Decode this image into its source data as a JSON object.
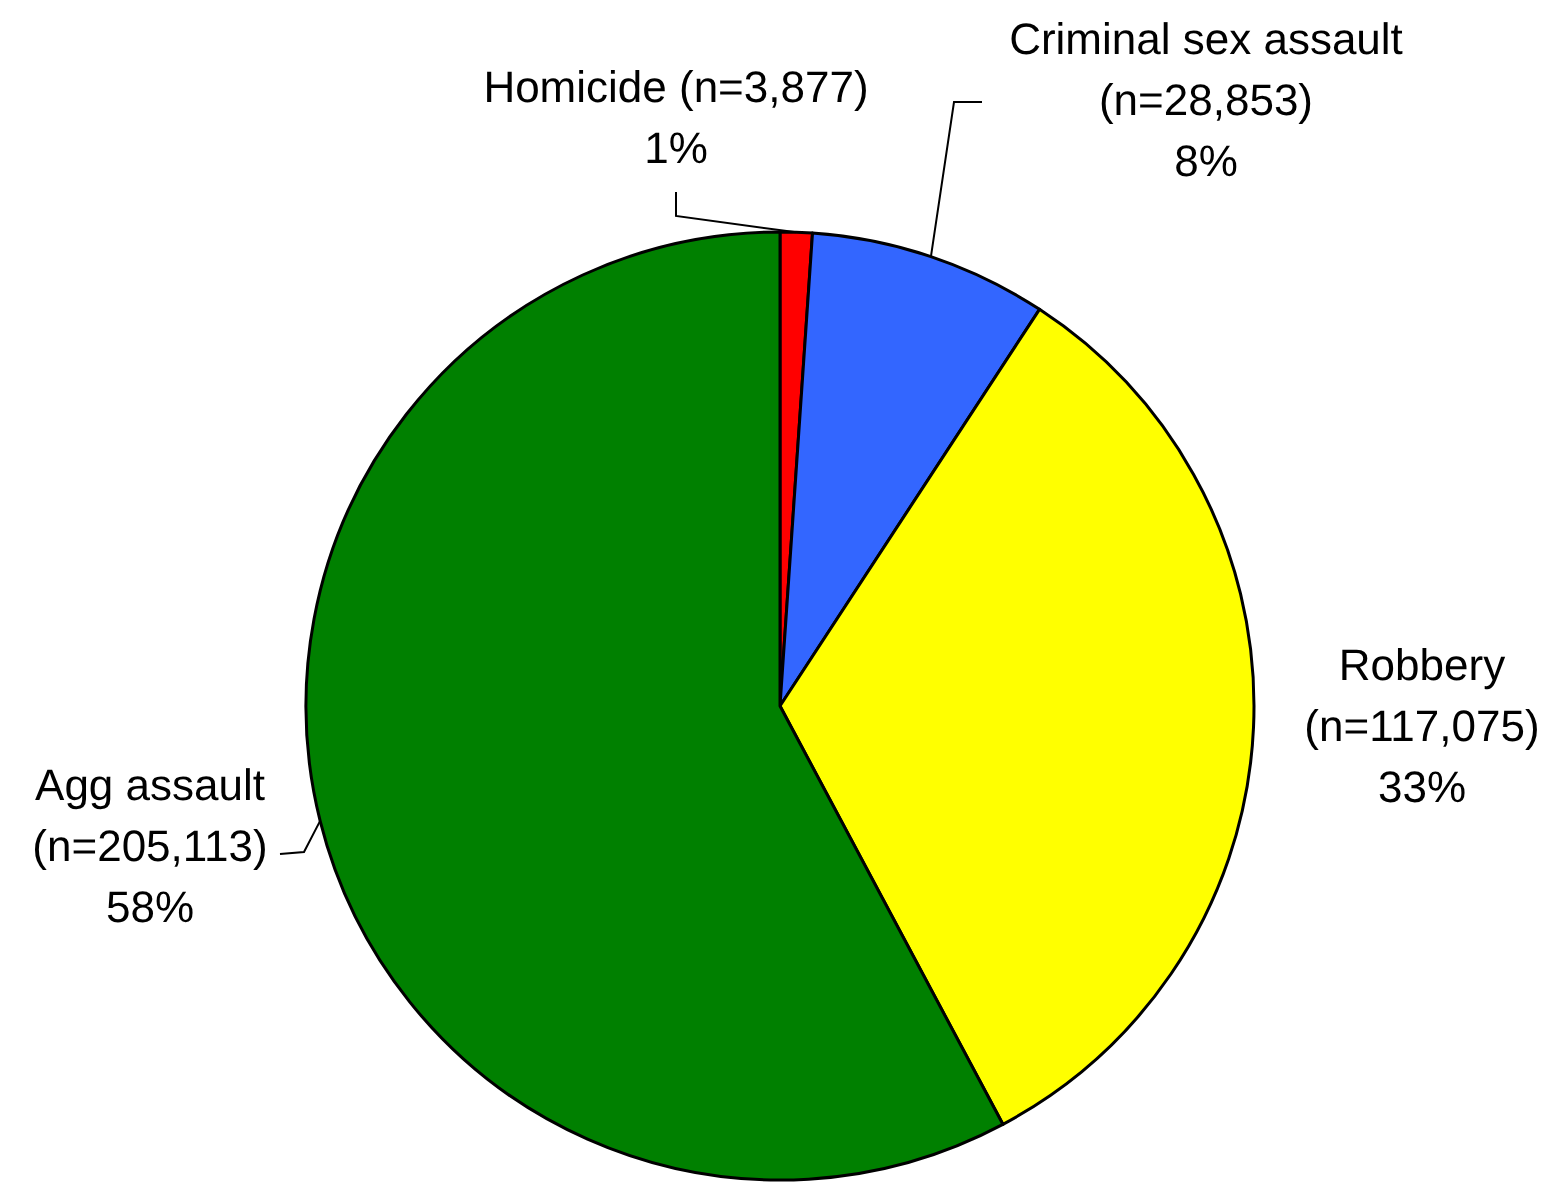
{
  "chart_data": {
    "type": "pie",
    "categories": [
      "Homicide",
      "Criminal sex assault",
      "Robbery",
      "Agg assault"
    ],
    "values": [
      3877,
      28853,
      117075,
      205113
    ],
    "value_labels": [
      "(n=3,877)\n1%",
      "(n=28,853)\n8%",
      "(n=117,075)\n33%",
      "(n=205,113)\n58%"
    ],
    "colors": [
      "#ff0000",
      "#3366ff",
      "#ffff00",
      "#008000"
    ]
  }
}
